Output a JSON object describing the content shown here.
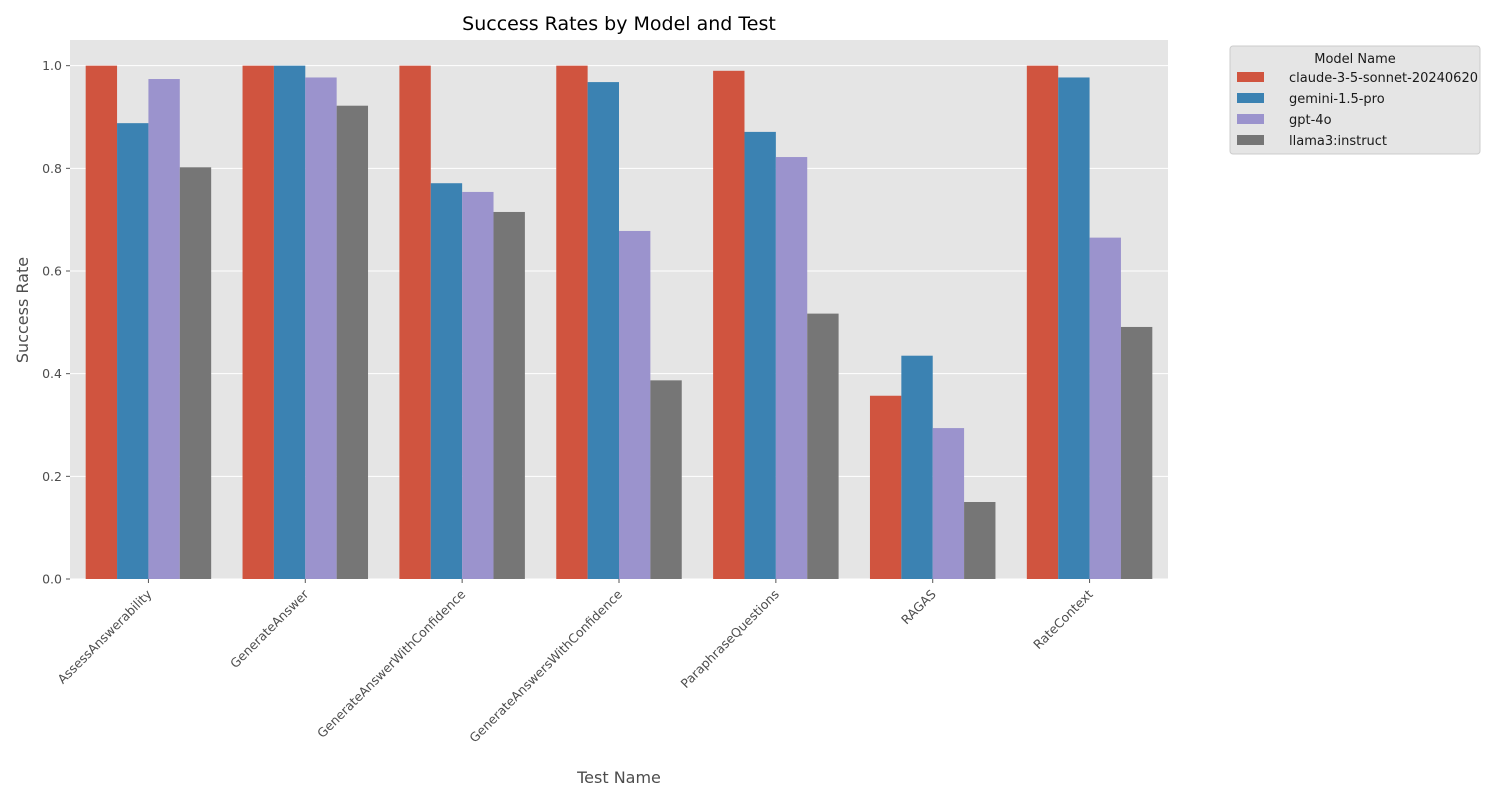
{
  "chart_data": {
    "type": "bar",
    "title": "Success Rates by Model and Test",
    "xlabel": "Test Name",
    "ylabel": "Success Rate",
    "ylim": [
      0,
      1.05
    ],
    "yticks": [
      0.0,
      0.2,
      0.4,
      0.6,
      0.8,
      1.0
    ],
    "ytick_labels": [
      "0.0",
      "0.2",
      "0.4",
      "0.6",
      "0.8",
      "1.0"
    ],
    "grid": true,
    "legend_position": "outside-top-right",
    "legend_title": "Model Name",
    "categories": [
      "AssessAnswerability",
      "GenerateAnswer",
      "GenerateAnswerWithConfidence",
      "GenerateAnswersWithConfidence",
      "ParaphraseQuestions",
      "RAGAS",
      "RateContext"
    ],
    "series": [
      {
        "name": "claude-3-5-sonnet-20240620",
        "color": "#d0543f",
        "values": [
          1.0,
          1.0,
          1.0,
          1.0,
          0.99,
          0.357,
          1.0
        ]
      },
      {
        "name": "gemini-1.5-pro",
        "color": "#3b82b2",
        "values": [
          0.888,
          1.0,
          0.771,
          0.968,
          0.871,
          0.435,
          0.977
        ]
      },
      {
        "name": "gpt-4o",
        "color": "#9b93cd",
        "values": [
          0.974,
          0.977,
          0.754,
          0.678,
          0.822,
          0.294,
          0.665
        ]
      },
      {
        "name": "llama3:instruct",
        "color": "#767676",
        "values": [
          0.802,
          0.922,
          0.715,
          0.387,
          0.517,
          0.15,
          0.491
        ]
      }
    ]
  }
}
